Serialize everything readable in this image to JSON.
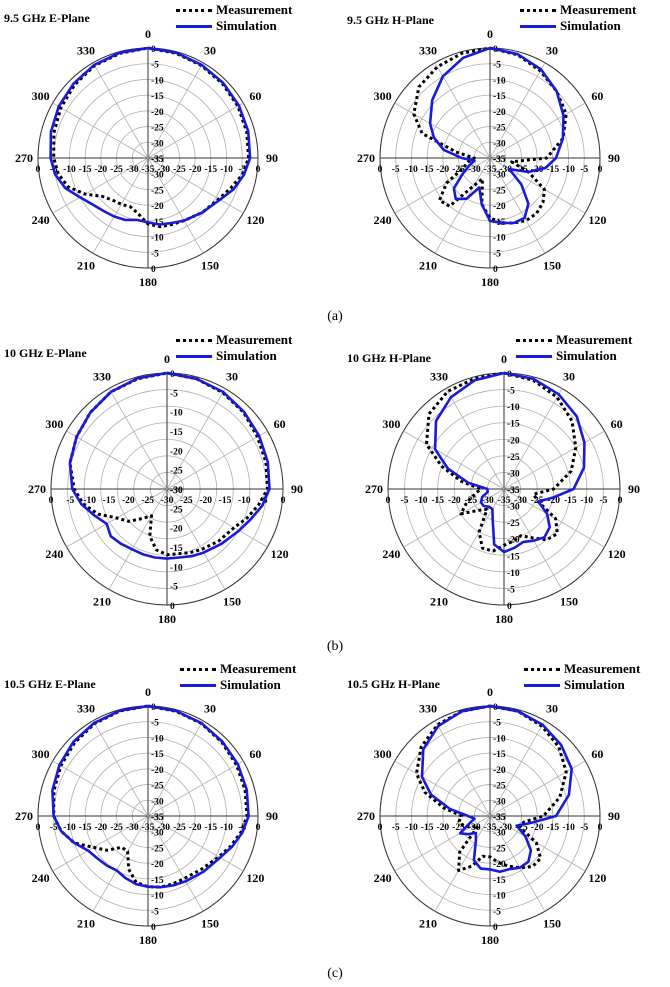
{
  "colors": {
    "measurement": "#000000",
    "simulation": "#1a1adb",
    "grid": "#b0b0b0",
    "axis": "#333333"
  },
  "captions": [
    "(a)",
    "(b)",
    "(c)"
  ],
  "chart_data": [
    {
      "type": "line",
      "projection": "polar",
      "title": "9.5 GHz E-Plane",
      "subplot": "(a)",
      "angle_labels": [
        "0",
        "30",
        "60",
        "90",
        "120",
        "150",
        "180",
        "210",
        "240",
        "270",
        "300",
        "330"
      ],
      "radial_ticks": [
        "-35",
        "-30",
        "-25",
        "-20",
        "-15",
        "-10",
        "-5",
        "0"
      ],
      "rlim": [
        -35,
        0
      ],
      "legend": [
        "Measurement",
        "Simulation"
      ],
      "series": [
        {
          "name": "Measurement",
          "style": "dotted",
          "theta": [
            0,
            15,
            30,
            45,
            60,
            75,
            90,
            100,
            110,
            120,
            135,
            150,
            160,
            170,
            180,
            190,
            200,
            210,
            220,
            230,
            240,
            250,
            260,
            270,
            285,
            300,
            315,
            330,
            345
          ],
          "r": [
            0,
            -0.5,
            -1,
            -1.5,
            -2,
            -2.5,
            -3,
            -4.5,
            -7,
            -9,
            -10.5,
            -12,
            -12.5,
            -12.8,
            -14,
            -17,
            -18.5,
            -18,
            -17.5,
            -16,
            -12,
            -8,
            -6,
            -5,
            -4,
            -3,
            -2,
            -1,
            -0.5
          ]
        },
        {
          "name": "Simulation",
          "style": "solid",
          "theta": [
            0,
            15,
            30,
            45,
            60,
            75,
            90,
            100,
            110,
            120,
            135,
            150,
            160,
            170,
            180,
            190,
            200,
            210,
            220,
            230,
            240,
            250,
            260,
            270,
            285,
            300,
            315,
            330,
            345
          ],
          "r": [
            0,
            -0.3,
            -0.8,
            -1.2,
            -1.6,
            -2,
            -2.5,
            -4,
            -6,
            -8.5,
            -10.5,
            -12,
            -13,
            -13.5,
            -14.5,
            -15,
            -14,
            -13.5,
            -13,
            -12,
            -10,
            -7,
            -5,
            -4,
            -3,
            -2.2,
            -1.5,
            -0.8,
            -0.3
          ]
        }
      ]
    },
    {
      "type": "line",
      "projection": "polar",
      "title": "9.5 GHz H-Plane",
      "subplot": "(a)",
      "angle_labels": [
        "0",
        "30",
        "60",
        "90",
        "120",
        "150",
        "180",
        "210",
        "240",
        "270",
        "300",
        "330"
      ],
      "radial_ticks": [
        "-35",
        "-30",
        "-25",
        "-20",
        "-15",
        "-10",
        "-5",
        "0"
      ],
      "rlim": [
        -35,
        0
      ],
      "legend": [
        "Measurement",
        "Simulation"
      ],
      "series": [
        {
          "name": "Measurement",
          "style": "dotted",
          "theta": [
            0,
            15,
            30,
            45,
            60,
            75,
            90,
            100,
            110,
            120,
            130,
            140,
            150,
            160,
            170,
            180,
            190,
            200,
            210,
            220,
            230,
            240,
            250,
            260,
            270,
            280,
            290,
            300,
            315,
            330,
            345
          ],
          "r": [
            0,
            -1,
            -3,
            -5,
            -7,
            -11,
            -17,
            -28,
            -22,
            -15,
            -13,
            -12,
            -12,
            -13,
            -14,
            -16,
            -20,
            -28,
            -25,
            -15,
            -14,
            -19,
            -26,
            -28,
            -30,
            -24,
            -12,
            -7,
            -3,
            -1.5,
            -0.5
          ]
        },
        {
          "name": "Simulation",
          "style": "solid",
          "theta": [
            0,
            15,
            30,
            45,
            60,
            75,
            90,
            100,
            110,
            120,
            130,
            140,
            150,
            160,
            170,
            180,
            190,
            200,
            210,
            220,
            230,
            240,
            250,
            260,
            270,
            280,
            290,
            300,
            315,
            330,
            345
          ],
          "r": [
            0,
            -0.8,
            -2.5,
            -5,
            -8,
            -11,
            -14,
            -17,
            -22,
            -28,
            -22,
            -16,
            -13,
            -13,
            -14,
            -15,
            -20,
            -25,
            -20,
            -18,
            -20,
            -25,
            -28,
            -30,
            -26,
            -20,
            -16,
            -13,
            -9,
            -5,
            -2
          ]
        }
      ]
    },
    {
      "type": "line",
      "projection": "polar",
      "title": "10 GHz E-Plane",
      "subplot": "(b)",
      "angle_labels": [
        "0",
        "30",
        "60",
        "90",
        "120",
        "150",
        "180",
        "210",
        "240",
        "270",
        "300",
        "330"
      ],
      "radial_ticks": [
        "-30",
        "-25",
        "-20",
        "-15",
        "-10",
        "-5",
        "0"
      ],
      "rlim": [
        -30,
        0
      ],
      "legend": [
        "Measurement",
        "Simulation"
      ],
      "series": [
        {
          "name": "Measurement",
          "style": "dotted",
          "theta": [
            0,
            15,
            30,
            45,
            60,
            75,
            90,
            100,
            110,
            120,
            135,
            150,
            160,
            170,
            180,
            190,
            200,
            210,
            220,
            230,
            240,
            250,
            260,
            270,
            285,
            300,
            315,
            330,
            345
          ],
          "r": [
            0,
            -0.5,
            -1.2,
            -2,
            -3,
            -3.5,
            -4,
            -6,
            -8,
            -10,
            -11,
            -12,
            -12.5,
            -13,
            -13,
            -14,
            -17,
            -22,
            -20,
            -17,
            -15,
            -11,
            -8,
            -6,
            -4,
            -3,
            -2,
            -1,
            -0.5
          ]
        },
        {
          "name": "Simulation",
          "style": "solid",
          "theta": [
            0,
            15,
            30,
            45,
            60,
            75,
            90,
            100,
            110,
            120,
            135,
            150,
            160,
            170,
            180,
            190,
            200,
            210,
            220,
            230,
            240,
            250,
            260,
            270,
            285,
            300,
            315,
            330,
            345
          ],
          "r": [
            0,
            -0.5,
            -1,
            -1.8,
            -2.5,
            -3,
            -3.5,
            -5,
            -7,
            -8.5,
            -10,
            -11,
            -11.5,
            -12,
            -12,
            -12,
            -12,
            -12,
            -11.5,
            -11,
            -12,
            -10,
            -7.5,
            -5.5,
            -4,
            -3,
            -2,
            -1,
            -0.4
          ]
        }
      ]
    },
    {
      "type": "line",
      "projection": "polar",
      "title": "10 GHz H-Plane",
      "subplot": "(b)",
      "angle_labels": [
        "0",
        "30",
        "60",
        "90",
        "120",
        "150",
        "180",
        "210",
        "240",
        "270",
        "300",
        "330"
      ],
      "radial_ticks": [
        "-35",
        "-30",
        "-25",
        "-20",
        "-15",
        "-10",
        "-5",
        "0"
      ],
      "rlim": [
        -35,
        0
      ],
      "legend": [
        "Measurement",
        "Simulation"
      ],
      "series": [
        {
          "name": "Measurement",
          "style": "dotted",
          "theta": [
            0,
            15,
            30,
            45,
            60,
            75,
            90,
            100,
            110,
            120,
            130,
            140,
            150,
            160,
            170,
            180,
            190,
            200,
            210,
            220,
            230,
            240,
            250,
            260,
            270,
            280,
            290,
            300,
            315,
            330,
            345
          ],
          "r": [
            0,
            -1,
            -3,
            -6,
            -10,
            -14,
            -20,
            -26,
            -24,
            -17,
            -14,
            -15,
            -18,
            -20,
            -19,
            -18,
            -16,
            -16,
            -20,
            -27,
            -25,
            -20,
            -23,
            -26,
            -28,
            -22,
            -15,
            -8,
            -3,
            -1,
            -0.5
          ]
        },
        {
          "name": "Simulation",
          "style": "solid",
          "theta": [
            0,
            15,
            30,
            45,
            60,
            75,
            90,
            100,
            110,
            120,
            130,
            140,
            150,
            160,
            170,
            180,
            190,
            200,
            210,
            220,
            230,
            240,
            250,
            260,
            270,
            280,
            290,
            300,
            315,
            330,
            345
          ],
          "r": [
            0,
            -0.6,
            -2,
            -4,
            -7,
            -10,
            -14,
            -20,
            -24,
            -20,
            -17,
            -16,
            -17,
            -18,
            -17,
            -16,
            -18,
            -25,
            -28,
            -28,
            -27,
            -27,
            -28,
            -30,
            -30,
            -24,
            -17,
            -11,
            -6,
            -3,
            -1
          ]
        }
      ]
    },
    {
      "type": "line",
      "projection": "polar",
      "title": "10.5 GHz E-Plane",
      "subplot": "(c)",
      "angle_labels": [
        "0",
        "30",
        "60",
        "90",
        "120",
        "150",
        "180",
        "210",
        "240",
        "270",
        "300",
        "330"
      ],
      "radial_ticks": [
        "-35",
        "-30",
        "-25",
        "-20",
        "-15",
        "-10",
        "-5",
        "0"
      ],
      "rlim": [
        -35,
        0
      ],
      "legend": [
        "Measurement",
        "Simulation"
      ],
      "series": [
        {
          "name": "Measurement",
          "style": "dotted",
          "theta": [
            0,
            15,
            30,
            45,
            60,
            75,
            90,
            100,
            110,
            120,
            135,
            150,
            160,
            170,
            180,
            190,
            200,
            210,
            220,
            230,
            240,
            250,
            260,
            270,
            285,
            300,
            315,
            330,
            345
          ],
          "r": [
            0,
            -0.5,
            -1,
            -1.8,
            -2.5,
            -3,
            -3.5,
            -5,
            -7,
            -9,
            -11,
            -12,
            -12,
            -12,
            -12.5,
            -13.5,
            -17,
            -22,
            -22,
            -18,
            -15,
            -10,
            -7,
            -5,
            -4,
            -3,
            -2,
            -1,
            -0.4
          ]
        },
        {
          "name": "Simulation",
          "style": "solid",
          "theta": [
            0,
            15,
            30,
            45,
            60,
            75,
            90,
            100,
            110,
            120,
            135,
            150,
            160,
            170,
            180,
            190,
            200,
            210,
            220,
            230,
            240,
            250,
            260,
            270,
            285,
            300,
            315,
            330,
            345
          ],
          "r": [
            0,
            -0.4,
            -0.9,
            -1.5,
            -2,
            -2.5,
            -3,
            -4.5,
            -6.5,
            -8.5,
            -10,
            -11,
            -11.5,
            -12,
            -12.5,
            -13,
            -14,
            -15,
            -14.5,
            -14,
            -13,
            -10,
            -7,
            -5,
            -3.5,
            -2.5,
            -1.5,
            -0.8,
            -0.3
          ]
        }
      ]
    },
    {
      "type": "line",
      "projection": "polar",
      "title": "10.5 GHz H-Plane",
      "subplot": "(c)",
      "angle_labels": [
        "0",
        "30",
        "60",
        "90",
        "120",
        "150",
        "180",
        "210",
        "240",
        "270",
        "300",
        "330"
      ],
      "radial_ticks": [
        "-35",
        "-30",
        "-25",
        "-20",
        "-15",
        "-10",
        "-5",
        "0"
      ],
      "rlim": [
        -35,
        0
      ],
      "legend": [
        "Measurement",
        "Simulation"
      ],
      "series": [
        {
          "name": "Measurement",
          "style": "dotted",
          "theta": [
            0,
            15,
            30,
            45,
            60,
            75,
            90,
            100,
            110,
            120,
            130,
            140,
            150,
            160,
            170,
            180,
            190,
            200,
            210,
            220,
            230,
            240,
            250,
            260,
            270,
            280,
            290,
            300,
            315,
            330,
            345
          ],
          "r": [
            0,
            -0.5,
            -2,
            -4,
            -7,
            -12,
            -18,
            -24,
            -25,
            -18,
            -14,
            -14,
            -16,
            -18,
            -20,
            -22,
            -22,
            -18,
            -15,
            -20,
            -30,
            -28,
            -26,
            -25,
            -26,
            -20,
            -13,
            -8,
            -4,
            -1.5,
            -0.5
          ]
        },
        {
          "name": "Simulation",
          "style": "solid",
          "theta": [
            0,
            15,
            30,
            45,
            60,
            75,
            90,
            100,
            110,
            120,
            130,
            140,
            150,
            160,
            170,
            180,
            190,
            200,
            210,
            220,
            230,
            240,
            250,
            260,
            270,
            280,
            290,
            300,
            315,
            330,
            345
          ],
          "r": [
            0,
            -0.5,
            -1.5,
            -3,
            -5,
            -9,
            -14,
            -22,
            -26,
            -22,
            -18,
            -16,
            -16,
            -17,
            -17,
            -18,
            -18,
            -20,
            -26,
            -28,
            -26,
            -24,
            -28,
            -30,
            -28,
            -22,
            -15,
            -10,
            -5,
            -2,
            -0.5
          ]
        }
      ]
    }
  ]
}
